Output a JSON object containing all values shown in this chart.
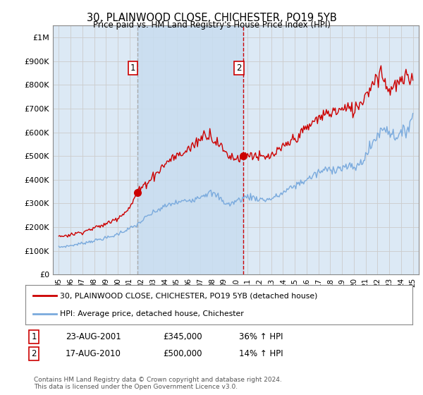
{
  "title": "30, PLAINWOOD CLOSE, CHICHESTER, PO19 5YB",
  "subtitle": "Price paid vs. HM Land Registry's House Price Index (HPI)",
  "legend_line1": "30, PLAINWOOD CLOSE, CHICHESTER, PO19 5YB (detached house)",
  "legend_line2": "HPI: Average price, detached house, Chichester",
  "sale1_date": "23-AUG-2001",
  "sale1_price": "£345,000",
  "sale1_hpi": "36% ↑ HPI",
  "sale1_year": 2001.65,
  "sale2_date": "17-AUG-2010",
  "sale2_price": "£500,000",
  "sale2_hpi": "14% ↑ HPI",
  "sale2_year": 2010.65,
  "copyright": "Contains HM Land Registry data © Crown copyright and database right 2024.\nThis data is licensed under the Open Government Licence v3.0.",
  "bg_color": "#dce9f5",
  "red_color": "#cc0000",
  "blue_color": "#7aaadd",
  "grid_color": "#cccccc",
  "vline1_color": "#aaaaaa",
  "vline2_color": "#cc0000",
  "shade_color": "#c8ddf0",
  "ylim": [
    0,
    1050000
  ],
  "yticks": [
    0,
    100000,
    200000,
    300000,
    400000,
    500000,
    600000,
    700000,
    800000,
    900000,
    1000000
  ],
  "ytick_labels": [
    "£0",
    "£100K",
    "£200K",
    "£300K",
    "£400K",
    "£500K",
    "£600K",
    "£700K",
    "£800K",
    "£900K",
    "£1M"
  ],
  "xmin": 1994.5,
  "xmax": 2025.5,
  "sale1_price_val": 345000,
  "sale2_price_val": 500000
}
